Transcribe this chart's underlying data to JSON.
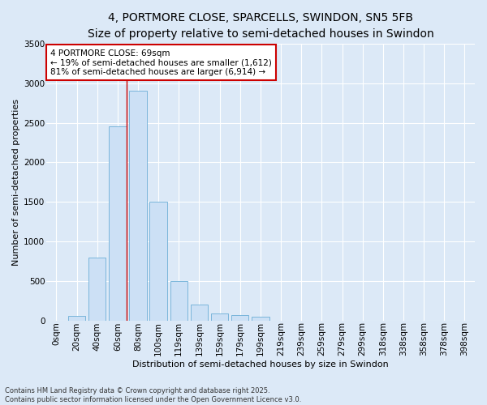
{
  "title1": "4, PORTMORE CLOSE, SPARCELLS, SWINDON, SN5 5FB",
  "title2": "Size of property relative to semi-detached houses in Swindon",
  "xlabel": "Distribution of semi-detached houses by size in Swindon",
  "ylabel": "Number of semi-detached properties",
  "bar_labels": [
    "0sqm",
    "20sqm",
    "40sqm",
    "60sqm",
    "80sqm",
    "100sqm",
    "119sqm",
    "139sqm",
    "159sqm",
    "179sqm",
    "199sqm",
    "219sqm",
    "239sqm",
    "259sqm",
    "279sqm",
    "299sqm",
    "318sqm",
    "338sqm",
    "358sqm",
    "378sqm",
    "398sqm"
  ],
  "bar_values": [
    0,
    60,
    800,
    2450,
    2900,
    1500,
    500,
    200,
    90,
    70,
    50,
    0,
    0,
    0,
    0,
    0,
    0,
    0,
    0,
    0,
    0
  ],
  "bar_color": "#cce0f5",
  "bar_edge_color": "#6baed6",
  "annotation_title": "4 PORTMORE CLOSE: 69sqm",
  "annotation_line1": "← 19% of semi-detached houses are smaller (1,612)",
  "annotation_line2": "81% of semi-detached houses are larger (6,914) →",
  "annotation_box_facecolor": "#ffffff",
  "annotation_box_edgecolor": "#cc0000",
  "red_line_color": "#cc0000",
  "ylim": [
    0,
    3500
  ],
  "yticks": [
    0,
    500,
    1000,
    1500,
    2000,
    2500,
    3000,
    3500
  ],
  "plot_bg_color": "#dce9f7",
  "fig_bg_color": "#dce9f7",
  "footer1": "Contains HM Land Registry data © Crown copyright and database right 2025.",
  "footer2": "Contains public sector information licensed under the Open Government Licence v3.0.",
  "title_fontsize": 10,
  "subtitle_fontsize": 9,
  "axis_label_fontsize": 8,
  "tick_fontsize": 7.5,
  "annotation_fontsize": 7.5,
  "footer_fontsize": 6
}
